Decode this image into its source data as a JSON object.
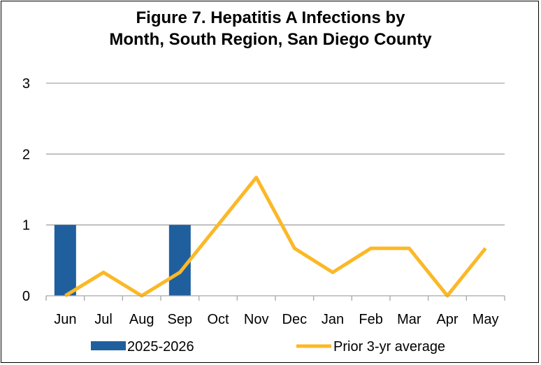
{
  "chart_data": {
    "type": "bar",
    "title_line1": "Figure 7. Hepatitis A Infections by",
    "title_line2": "Month, South Region, San Diego County",
    "categories": [
      "Jun",
      "Jul",
      "Aug",
      "Sep",
      "Oct",
      "Nov",
      "Dec",
      "Jan",
      "Feb",
      "Mar",
      "Apr",
      "May"
    ],
    "ylim": [
      0,
      3
    ],
    "yticks": [
      "0",
      "1",
      "2",
      "3"
    ],
    "grid": true,
    "legend_position": "bottom",
    "series": [
      {
        "name": "2025-2026",
        "type": "bar",
        "color": "#1f5f9e",
        "values": [
          1,
          0,
          0,
          1,
          null,
          null,
          null,
          null,
          null,
          null,
          null,
          null
        ]
      },
      {
        "name": "Prior 3-yr average",
        "type": "line",
        "color": "#fbb827",
        "values": [
          0,
          0.33,
          0,
          0.33,
          1,
          1.67,
          0.67,
          0.33,
          0.67,
          0.67,
          0,
          0.67
        ]
      }
    ]
  }
}
